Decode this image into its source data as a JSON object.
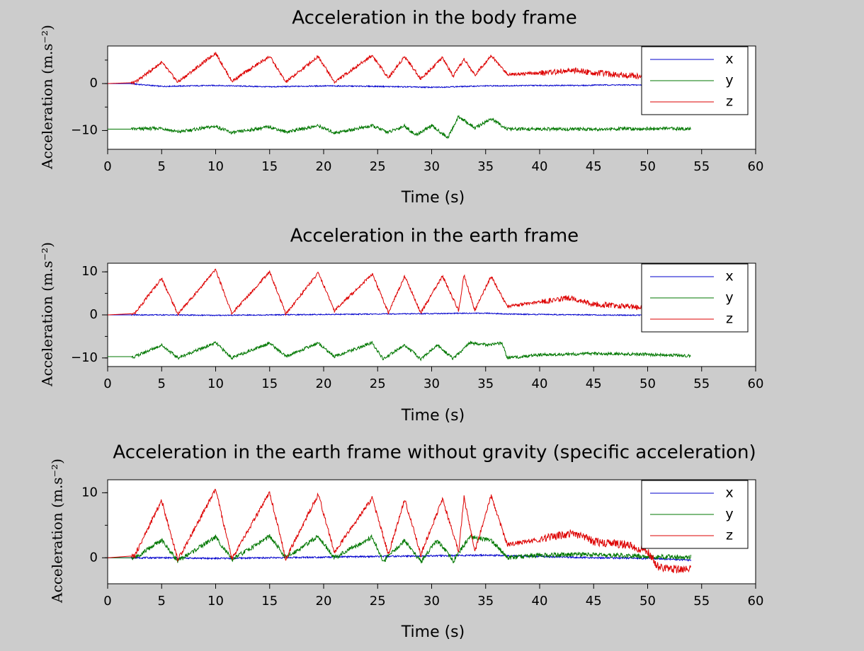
{
  "chart_data": [
    {
      "type": "line",
      "title": "Acceleration in the body frame",
      "xlabel": "Time (s)",
      "ylabel": "Acceleration (m.s⁻²)",
      "xlim": [
        0,
        60
      ],
      "ylim": [
        -14,
        8
      ],
      "xticks": [
        "0",
        "5",
        "10",
        "15",
        "20",
        "25",
        "30",
        "35",
        "40",
        "45",
        "50",
        "55",
        "60"
      ],
      "yticks": [
        {
          "value": 0,
          "label": "0"
        },
        {
          "value": -10,
          "label": "−10"
        }
      ],
      "legend": {
        "position": "top-right",
        "labels": [
          "x",
          "y",
          "z"
        ]
      },
      "grid": false,
      "series": [
        {
          "name": "x",
          "color": "#0000cc",
          "x": [
            0,
            2,
            5,
            10,
            15,
            20,
            25,
            30,
            35,
            40,
            44.5,
            45,
            50,
            54
          ],
          "y": [
            0,
            0,
            -0.6,
            -0.4,
            -0.7,
            -0.5,
            -0.6,
            -0.8,
            -0.5,
            -0.4,
            -0.4,
            -0.3,
            -0.3,
            -0.3
          ]
        },
        {
          "name": "y",
          "color": "#007700",
          "x": [
            0,
            2.5,
            5,
            6.5,
            10,
            11.5,
            15,
            16.5,
            19.5,
            21,
            24.5,
            26,
            27.5,
            28.5,
            30,
            31.5,
            32.5,
            34,
            35.5,
            37,
            40,
            45,
            50,
            54
          ],
          "y": [
            -9.7,
            -9.7,
            -9.5,
            -10.3,
            -9.1,
            -10.5,
            -9.2,
            -10.3,
            -9.0,
            -10.5,
            -9.0,
            -10.4,
            -9.0,
            -11.0,
            -9.0,
            -11.5,
            -7.0,
            -9.5,
            -7.5,
            -9.7,
            -9.7,
            -9.7,
            -9.6,
            -9.6
          ]
        },
        {
          "name": "z",
          "color": "#dd0000",
          "x": [
            0,
            2.5,
            5,
            6.5,
            10,
            11.5,
            15,
            16.5,
            19.5,
            21,
            24.5,
            26,
            27.5,
            29,
            31,
            32,
            33,
            34,
            35.5,
            37,
            40,
            43,
            44.3,
            45,
            48,
            50,
            54
          ],
          "y": [
            0,
            0.2,
            4.5,
            0.3,
            6.5,
            0.5,
            5.8,
            0.3,
            5.8,
            0.3,
            6.0,
            1.2,
            5.8,
            1.0,
            5.5,
            1.5,
            5.2,
            1.8,
            6.0,
            2.0,
            2.2,
            2.8,
            2.5,
            2.3,
            1.8,
            1.5,
            1.2
          ]
        }
      ]
    },
    {
      "type": "line",
      "title": "Acceleration in the earth frame",
      "xlabel": "Time (s)",
      "ylabel": "Acceleration (m.s⁻²)",
      "xlim": [
        0,
        60
      ],
      "ylim": [
        -12,
        12
      ],
      "xticks": [
        "0",
        "5",
        "10",
        "15",
        "20",
        "25",
        "30",
        "35",
        "40",
        "45",
        "50",
        "55",
        "60"
      ],
      "yticks": [
        {
          "value": 10,
          "label": "10"
        },
        {
          "value": 0,
          "label": "0"
        },
        {
          "value": -10,
          "label": "−10"
        }
      ],
      "legend": {
        "position": "top-right",
        "labels": [
          "x",
          "y",
          "z"
        ]
      },
      "grid": false,
      "series": [
        {
          "name": "x",
          "color": "#0000cc",
          "x": [
            0,
            2,
            5,
            10,
            15,
            20,
            25,
            30,
            35,
            37,
            40,
            45,
            50,
            54
          ],
          "y": [
            0,
            0,
            0,
            -0.1,
            0,
            0.1,
            0.2,
            0.3,
            0.4,
            0.2,
            0.1,
            0,
            -0.1,
            0
          ]
        },
        {
          "name": "y",
          "color": "#007700",
          "x": [
            0,
            2.5,
            5,
            6.5,
            10,
            11.5,
            15,
            16.5,
            19.5,
            21,
            24.5,
            25.5,
            27.5,
            29,
            30.5,
            32,
            33.5,
            35.5,
            36.5,
            37,
            40,
            45,
            50,
            54
          ],
          "y": [
            -9.7,
            -9.7,
            -7.0,
            -10.0,
            -6.5,
            -10.0,
            -6.5,
            -9.7,
            -6.5,
            -9.7,
            -6.5,
            -10.3,
            -7.0,
            -10.3,
            -7.0,
            -10.2,
            -6.5,
            -7.0,
            -6.5,
            -10.0,
            -9.3,
            -9.0,
            -9.2,
            -9.5
          ]
        },
        {
          "name": "z",
          "color": "#dd0000",
          "x": [
            0,
            2.5,
            5,
            6.5,
            10,
            11.5,
            15,
            16.5,
            19.5,
            21,
            24.5,
            26,
            27.5,
            29,
            31,
            32.5,
            33,
            34,
            35.5,
            37,
            40,
            43,
            44.3,
            45,
            48,
            50,
            54
          ],
          "y": [
            0,
            0.3,
            8.5,
            0.2,
            10.5,
            0.3,
            10.0,
            0.2,
            9.8,
            1.0,
            9.5,
            0.5,
            9.0,
            0.5,
            9.0,
            1.0,
            9.3,
            1.0,
            9.0,
            2.0,
            3.0,
            4.0,
            3.0,
            2.5,
            2.0,
            1.5,
            1.2
          ]
        }
      ]
    },
    {
      "type": "line",
      "title": "Acceleration in the earth frame without gravity (specific acceleration)",
      "xlabel": "Time (s)",
      "ylabel": "Acceleration (m.s⁻²)",
      "xlim": [
        0,
        60
      ],
      "ylim": [
        -4,
        12
      ],
      "xticks": [
        "0",
        "5",
        "10",
        "15",
        "20",
        "25",
        "30",
        "35",
        "40",
        "45",
        "50",
        "55",
        "60"
      ],
      "yticks": [
        {
          "value": 10,
          "label": "10"
        },
        {
          "value": 0,
          "label": "0"
        }
      ],
      "legend": {
        "position": "top-right",
        "labels": [
          "x",
          "y",
          "z"
        ]
      },
      "grid": false,
      "series": [
        {
          "name": "x",
          "color": "#0000cc",
          "x": [
            0,
            2,
            5,
            10,
            15,
            20,
            25,
            30,
            35,
            40,
            45,
            50,
            52,
            54
          ],
          "y": [
            0,
            0,
            0,
            -0.1,
            0,
            0.1,
            0.2,
            0.3,
            0.4,
            0.2,
            0,
            -0.1,
            -0.2,
            -0.4
          ]
        },
        {
          "name": "y",
          "color": "#007700",
          "x": [
            0,
            2.5,
            5,
            6.5,
            10,
            11.5,
            15,
            16.5,
            19.5,
            21,
            24.5,
            25.5,
            27.5,
            29,
            30.5,
            32,
            33.5,
            35.5,
            37,
            40,
            45,
            50,
            53,
            54
          ],
          "y": [
            0,
            0,
            2.7,
            -0.5,
            3.2,
            -0.3,
            3.3,
            0,
            3.3,
            0,
            3.2,
            -0.6,
            2.7,
            -0.6,
            2.7,
            -0.5,
            3.2,
            2.7,
            0,
            0.4,
            0.5,
            0.2,
            0.1,
            0.2
          ]
        },
        {
          "name": "z",
          "color": "#dd0000",
          "x": [
            0,
            2.5,
            5,
            6.5,
            10,
            11.5,
            15,
            16.5,
            19.5,
            21,
            24.5,
            26,
            27.5,
            29,
            31,
            32.5,
            33,
            34,
            35.5,
            37,
            40,
            43,
            44.3,
            45,
            48,
            50,
            51,
            53,
            54
          ],
          "y": [
            0,
            0.3,
            8.8,
            -0.3,
            10.5,
            -0.2,
            10.0,
            -0.2,
            9.8,
            0.8,
            9.2,
            0.5,
            9.0,
            0.5,
            9.0,
            1.0,
            9.3,
            1.0,
            9.5,
            2.0,
            2.8,
            3.8,
            3.0,
            2.5,
            2.0,
            1.0,
            -1.5,
            -1.8,
            -1.6
          ]
        }
      ]
    }
  ]
}
